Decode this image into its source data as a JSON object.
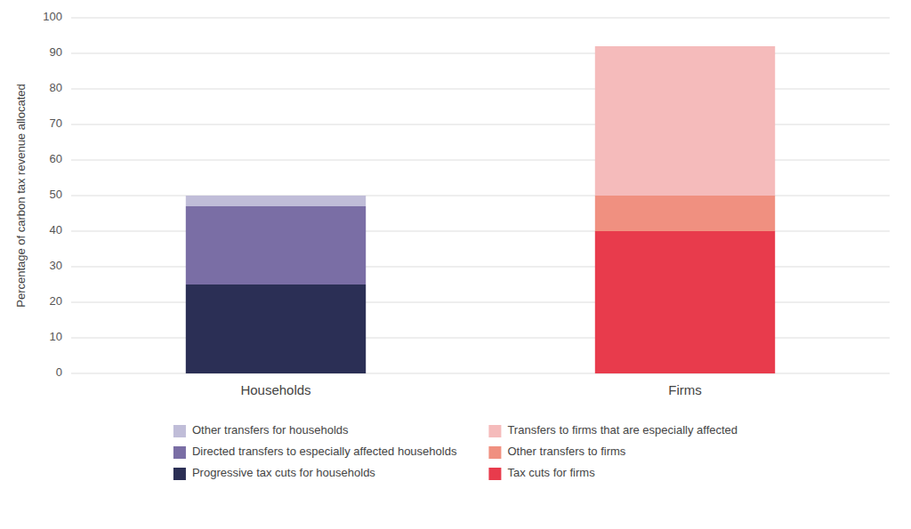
{
  "chart_data": {
    "type": "bar",
    "stacked": true,
    "y_label": "Percentage of carbon tax revenue allocated",
    "categories": [
      "Households",
      "Firms"
    ],
    "series": [
      {
        "name": "Progressive tax cuts for households",
        "color": "#2B2F55",
        "values": [
          25,
          null
        ]
      },
      {
        "name": "Directed transfers to especially affected households",
        "color": "#7A6EA5",
        "values": [
          22,
          null
        ]
      },
      {
        "name": "Other transfers for households",
        "color": "#C0BDD8",
        "values": [
          3,
          null
        ]
      },
      {
        "name": "Tax cuts for firms",
        "color": "#E83B4C",
        "values": [
          null,
          40
        ]
      },
      {
        "name": "Other transfers to firms",
        "color": "#F09080",
        "values": [
          null,
          10
        ]
      },
      {
        "name": "Transfers to firms that are especially affected",
        "color": "#F5BBBB",
        "values": [
          null,
          42
        ]
      }
    ],
    "ylim": [
      0,
      100
    ],
    "yticks": [
      0,
      10,
      20,
      30,
      40,
      50,
      60,
      70,
      80,
      90,
      100
    ],
    "grid": true,
    "legend": "bottom"
  }
}
